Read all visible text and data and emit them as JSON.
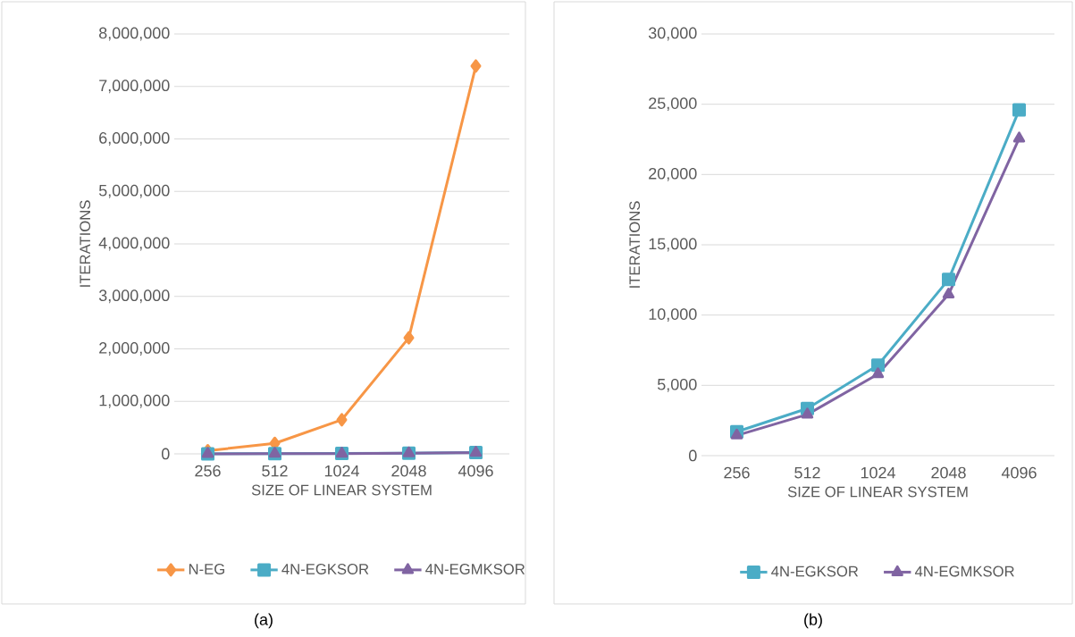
{
  "chart_data": [
    {
      "type": "line",
      "xlabel": "SIZE OF LINEAR SYSTEM",
      "ylabel": "ITERATIONS",
      "categories": [
        "256",
        "512",
        "1024",
        "2048",
        "4096"
      ],
      "series": [
        {
          "name": "N-EG",
          "color": "#f79646",
          "marker": "diamond",
          "values": [
            60000,
            200000,
            650000,
            2210000,
            7390000
          ]
        },
        {
          "name": "4N-EGKSOR",
          "color": "#4bacc6",
          "marker": "square",
          "values": [
            1700,
            3350,
            6430,
            12530,
            24590
          ]
        },
        {
          "name": "4N-EGMKSOR",
          "color": "#8064a2",
          "marker": "triangle",
          "values": [
            1440,
            2930,
            5800,
            11470,
            22570
          ]
        }
      ],
      "ylim": [
        0,
        8000000
      ],
      "yticks": [
        {
          "value": 0,
          "label": "0"
        },
        {
          "value": 1000000,
          "label": "1,000,000"
        },
        {
          "value": 2000000,
          "label": "2,000,000"
        },
        {
          "value": 3000000,
          "label": "3,000,000"
        },
        {
          "value": 4000000,
          "label": "4,000,000"
        },
        {
          "value": 5000000,
          "label": "5,000,000"
        },
        {
          "value": 6000000,
          "label": "6,000,000"
        },
        {
          "value": 7000000,
          "label": "7,000,000"
        },
        {
          "value": 8000000,
          "label": "8,000,000"
        }
      ],
      "grid": "y",
      "legend": "bottom",
      "annotations": [
        "(a)"
      ]
    },
    {
      "type": "line",
      "xlabel": "SIZE OF LINEAR SYSTEM",
      "ylabel": "ITERATIONS",
      "categories": [
        "256",
        "512",
        "1024",
        "2048",
        "4096"
      ],
      "series": [
        {
          "name": "4N-EGKSOR",
          "color": "#4bacc6",
          "marker": "square",
          "values": [
            1700,
            3350,
            6430,
            12530,
            24590
          ]
        },
        {
          "name": "4N-EGMKSOR",
          "color": "#8064a2",
          "marker": "triangle",
          "values": [
            1440,
            2930,
            5800,
            11470,
            22570
          ]
        }
      ],
      "ylim": [
        0,
        30000
      ],
      "yticks": [
        {
          "value": 0,
          "label": "0"
        },
        {
          "value": 5000,
          "label": "5,000"
        },
        {
          "value": 10000,
          "label": "10,000"
        },
        {
          "value": 15000,
          "label": "15,000"
        },
        {
          "value": 20000,
          "label": "20,000"
        },
        {
          "value": 25000,
          "label": "25,000"
        },
        {
          "value": 30000,
          "label": "30,000"
        }
      ],
      "grid": "y",
      "legend": "bottom",
      "annotations": [
        "(b)"
      ]
    }
  ]
}
